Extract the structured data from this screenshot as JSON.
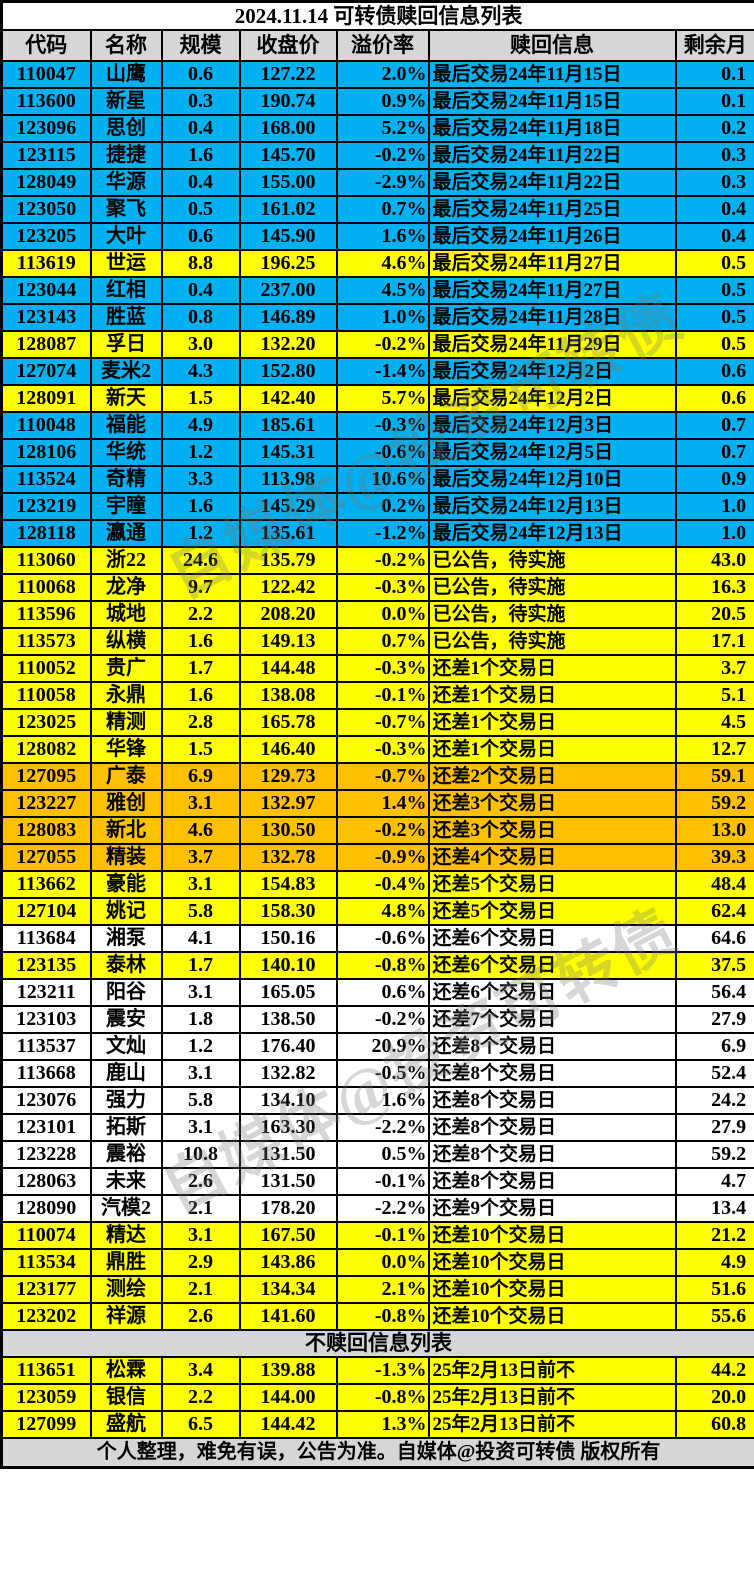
{
  "title": "2024.11.14 可转债赎回信息列表",
  "columns": [
    "代码",
    "名称",
    "规模",
    "收盘价",
    "溢价率",
    "赎回信息",
    "剩余月"
  ],
  "colors": {
    "cyan": "#00B0F0",
    "yellow": "#FFFF00",
    "orange": "#FFC000",
    "header_gray": "#D6D6D6",
    "white": "#FFFFFF",
    "border": "#000000",
    "text": "#000000"
  },
  "main_rows": [
    [
      "110047",
      "山鹰",
      "0.6",
      "127.22",
      "2.0%",
      "最后交易24年11月15日",
      "0.1",
      "cyan"
    ],
    [
      "113600",
      "新星",
      "0.3",
      "190.74",
      "0.9%",
      "最后交易24年11月15日",
      "0.1",
      "cyan"
    ],
    [
      "123096",
      "思创",
      "0.4",
      "168.00",
      "5.2%",
      "最后交易24年11月18日",
      "0.2",
      "cyan"
    ],
    [
      "123115",
      "捷捷",
      "1.6",
      "145.70",
      "-0.2%",
      "最后交易24年11月22日",
      "0.3",
      "cyan"
    ],
    [
      "128049",
      "华源",
      "0.4",
      "155.00",
      "-2.9%",
      "最后交易24年11月22日",
      "0.3",
      "cyan"
    ],
    [
      "123050",
      "聚飞",
      "0.5",
      "161.02",
      "0.7%",
      "最后交易24年11月25日",
      "0.4",
      "cyan"
    ],
    [
      "123205",
      "大叶",
      "0.6",
      "145.90",
      "1.6%",
      "最后交易24年11月26日",
      "0.4",
      "cyan"
    ],
    [
      "113619",
      "世运",
      "8.8",
      "196.25",
      "4.6%",
      "最后交易24年11月27日",
      "0.5",
      "yellow"
    ],
    [
      "123044",
      "红相",
      "0.4",
      "237.00",
      "4.5%",
      "最后交易24年11月27日",
      "0.5",
      "cyan"
    ],
    [
      "123143",
      "胜蓝",
      "0.8",
      "146.89",
      "1.0%",
      "最后交易24年11月28日",
      "0.5",
      "cyan"
    ],
    [
      "128087",
      "孚日",
      "3.0",
      "132.20",
      "-0.2%",
      "最后交易24年11月29日",
      "0.5",
      "yellow"
    ],
    [
      "127074",
      "麦米2",
      "4.3",
      "152.80",
      "-1.4%",
      "最后交易24年12月2日",
      "0.6",
      "cyan"
    ],
    [
      "128091",
      "新天",
      "1.5",
      "142.40",
      "5.7%",
      "最后交易24年12月2日",
      "0.6",
      "yellow"
    ],
    [
      "110048",
      "福能",
      "4.9",
      "185.61",
      "-0.3%",
      "最后交易24年12月3日",
      "0.7",
      "cyan"
    ],
    [
      "128106",
      "华统",
      "1.2",
      "145.31",
      "-0.6%",
      "最后交易24年12月5日",
      "0.7",
      "cyan"
    ],
    [
      "113524",
      "奇精",
      "3.3",
      "113.98",
      "10.6%",
      "最后交易24年12月10日",
      "0.9",
      "cyan"
    ],
    [
      "123219",
      "宇瞳",
      "1.6",
      "145.29",
      "0.2%",
      "最后交易24年12月13日",
      "1.0",
      "cyan"
    ],
    [
      "128118",
      "瀛通",
      "1.2",
      "135.61",
      "-1.2%",
      "最后交易24年12月13日",
      "1.0",
      "cyan"
    ],
    [
      "113060",
      "浙22",
      "24.6",
      "135.79",
      "-0.2%",
      "已公告，待实施",
      "43.0",
      "yellow"
    ],
    [
      "110068",
      "龙净",
      "9.7",
      "122.42",
      "-0.3%",
      "已公告，待实施",
      "16.3",
      "yellow"
    ],
    [
      "113596",
      "城地",
      "2.2",
      "208.20",
      "0.0%",
      "已公告，待实施",
      "20.5",
      "yellow"
    ],
    [
      "113573",
      "纵横",
      "1.6",
      "149.13",
      "0.7%",
      "已公告，待实施",
      "17.1",
      "yellow"
    ],
    [
      "110052",
      "贵广",
      "1.7",
      "144.48",
      "-0.3%",
      "还差1个交易日",
      "3.7",
      "yellow"
    ],
    [
      "110058",
      "永鼎",
      "1.6",
      "138.08",
      "-0.1%",
      "还差1个交易日",
      "5.1",
      "yellow"
    ],
    [
      "123025",
      "精测",
      "2.8",
      "165.78",
      "-0.7%",
      "还差1个交易日",
      "4.5",
      "yellow"
    ],
    [
      "128082",
      "华锋",
      "1.5",
      "146.40",
      "-0.3%",
      "还差1个交易日",
      "12.7",
      "yellow"
    ],
    [
      "127095",
      "广泰",
      "6.9",
      "129.73",
      "-0.7%",
      "还差2个交易日",
      "59.1",
      "orange"
    ],
    [
      "123227",
      "雅创",
      "3.1",
      "132.97",
      "1.4%",
      "还差3个交易日",
      "59.2",
      "orange"
    ],
    [
      "128083",
      "新北",
      "4.6",
      "130.50",
      "-0.2%",
      "还差3个交易日",
      "13.0",
      "orange"
    ],
    [
      "127055",
      "精装",
      "3.7",
      "132.78",
      "-0.9%",
      "还差4个交易日",
      "39.3",
      "orange"
    ],
    [
      "113662",
      "豪能",
      "3.1",
      "154.83",
      "-0.4%",
      "还差5个交易日",
      "48.4",
      "yellow"
    ],
    [
      "127104",
      "姚记",
      "5.8",
      "158.30",
      "4.8%",
      "还差5个交易日",
      "62.4",
      "yellow"
    ],
    [
      "113684",
      "湘泵",
      "4.1",
      "150.16",
      "-0.6%",
      "还差6个交易日",
      "64.6",
      "white"
    ],
    [
      "123135",
      "泰林",
      "1.7",
      "140.10",
      "-0.8%",
      "还差6个交易日",
      "37.5",
      "yellow"
    ],
    [
      "123211",
      "阳谷",
      "3.1",
      "165.05",
      "0.6%",
      "还差6个交易日",
      "56.4",
      "white"
    ],
    [
      "123103",
      "震安",
      "1.8",
      "138.50",
      "-0.2%",
      "还差7个交易日",
      "27.9",
      "white"
    ],
    [
      "113537",
      "文灿",
      "1.2",
      "176.40",
      "20.9%",
      "还差8个交易日",
      "6.9",
      "white"
    ],
    [
      "113668",
      "鹿山",
      "3.1",
      "132.82",
      "-0.5%",
      "还差8个交易日",
      "52.4",
      "white"
    ],
    [
      "123076",
      "强力",
      "5.8",
      "134.10",
      "1.6%",
      "还差8个交易日",
      "24.2",
      "white"
    ],
    [
      "123101",
      "拓斯",
      "3.1",
      "163.30",
      "-2.2%",
      "还差8个交易日",
      "27.9",
      "white"
    ],
    [
      "123228",
      "震裕",
      "10.8",
      "131.50",
      "0.5%",
      "还差8个交易日",
      "59.2",
      "white"
    ],
    [
      "128063",
      "未来",
      "2.6",
      "131.50",
      "-0.1%",
      "还差8个交易日",
      "4.7",
      "white"
    ],
    [
      "128090",
      "汽模2",
      "2.1",
      "178.20",
      "-2.2%",
      "还差9个交易日",
      "13.4",
      "white"
    ],
    [
      "110074",
      "精达",
      "3.1",
      "167.50",
      "-0.1%",
      "还差10个交易日",
      "21.2",
      "yellow"
    ],
    [
      "113534",
      "鼎胜",
      "2.9",
      "143.86",
      "0.0%",
      "还差10个交易日",
      "4.9",
      "yellow"
    ],
    [
      "123177",
      "测绘",
      "2.1",
      "134.34",
      "2.1%",
      "还差10个交易日",
      "51.6",
      "yellow"
    ],
    [
      "123202",
      "祥源",
      "2.6",
      "141.60",
      "-0.8%",
      "还差10个交易日",
      "55.6",
      "yellow"
    ]
  ],
  "section2_title": "不赎回信息列表",
  "section2_rows": [
    [
      "113651",
      "松霖",
      "3.4",
      "139.88",
      "-1.3%",
      "25年2月13日前不",
      "44.2",
      "yellow"
    ],
    [
      "123059",
      "银信",
      "2.2",
      "144.00",
      "-0.8%",
      "25年2月13日前不",
      "20.0",
      "yellow"
    ],
    [
      "127099",
      "盛航",
      "6.5",
      "144.42",
      "1.3%",
      "25年2月13日前不",
      "60.8",
      "yellow"
    ]
  ],
  "footer": "个人整理，难免有误，公告为准。自媒体@投资可转债  版权所有",
  "watermark_text": "自媒体@投资可转债"
}
